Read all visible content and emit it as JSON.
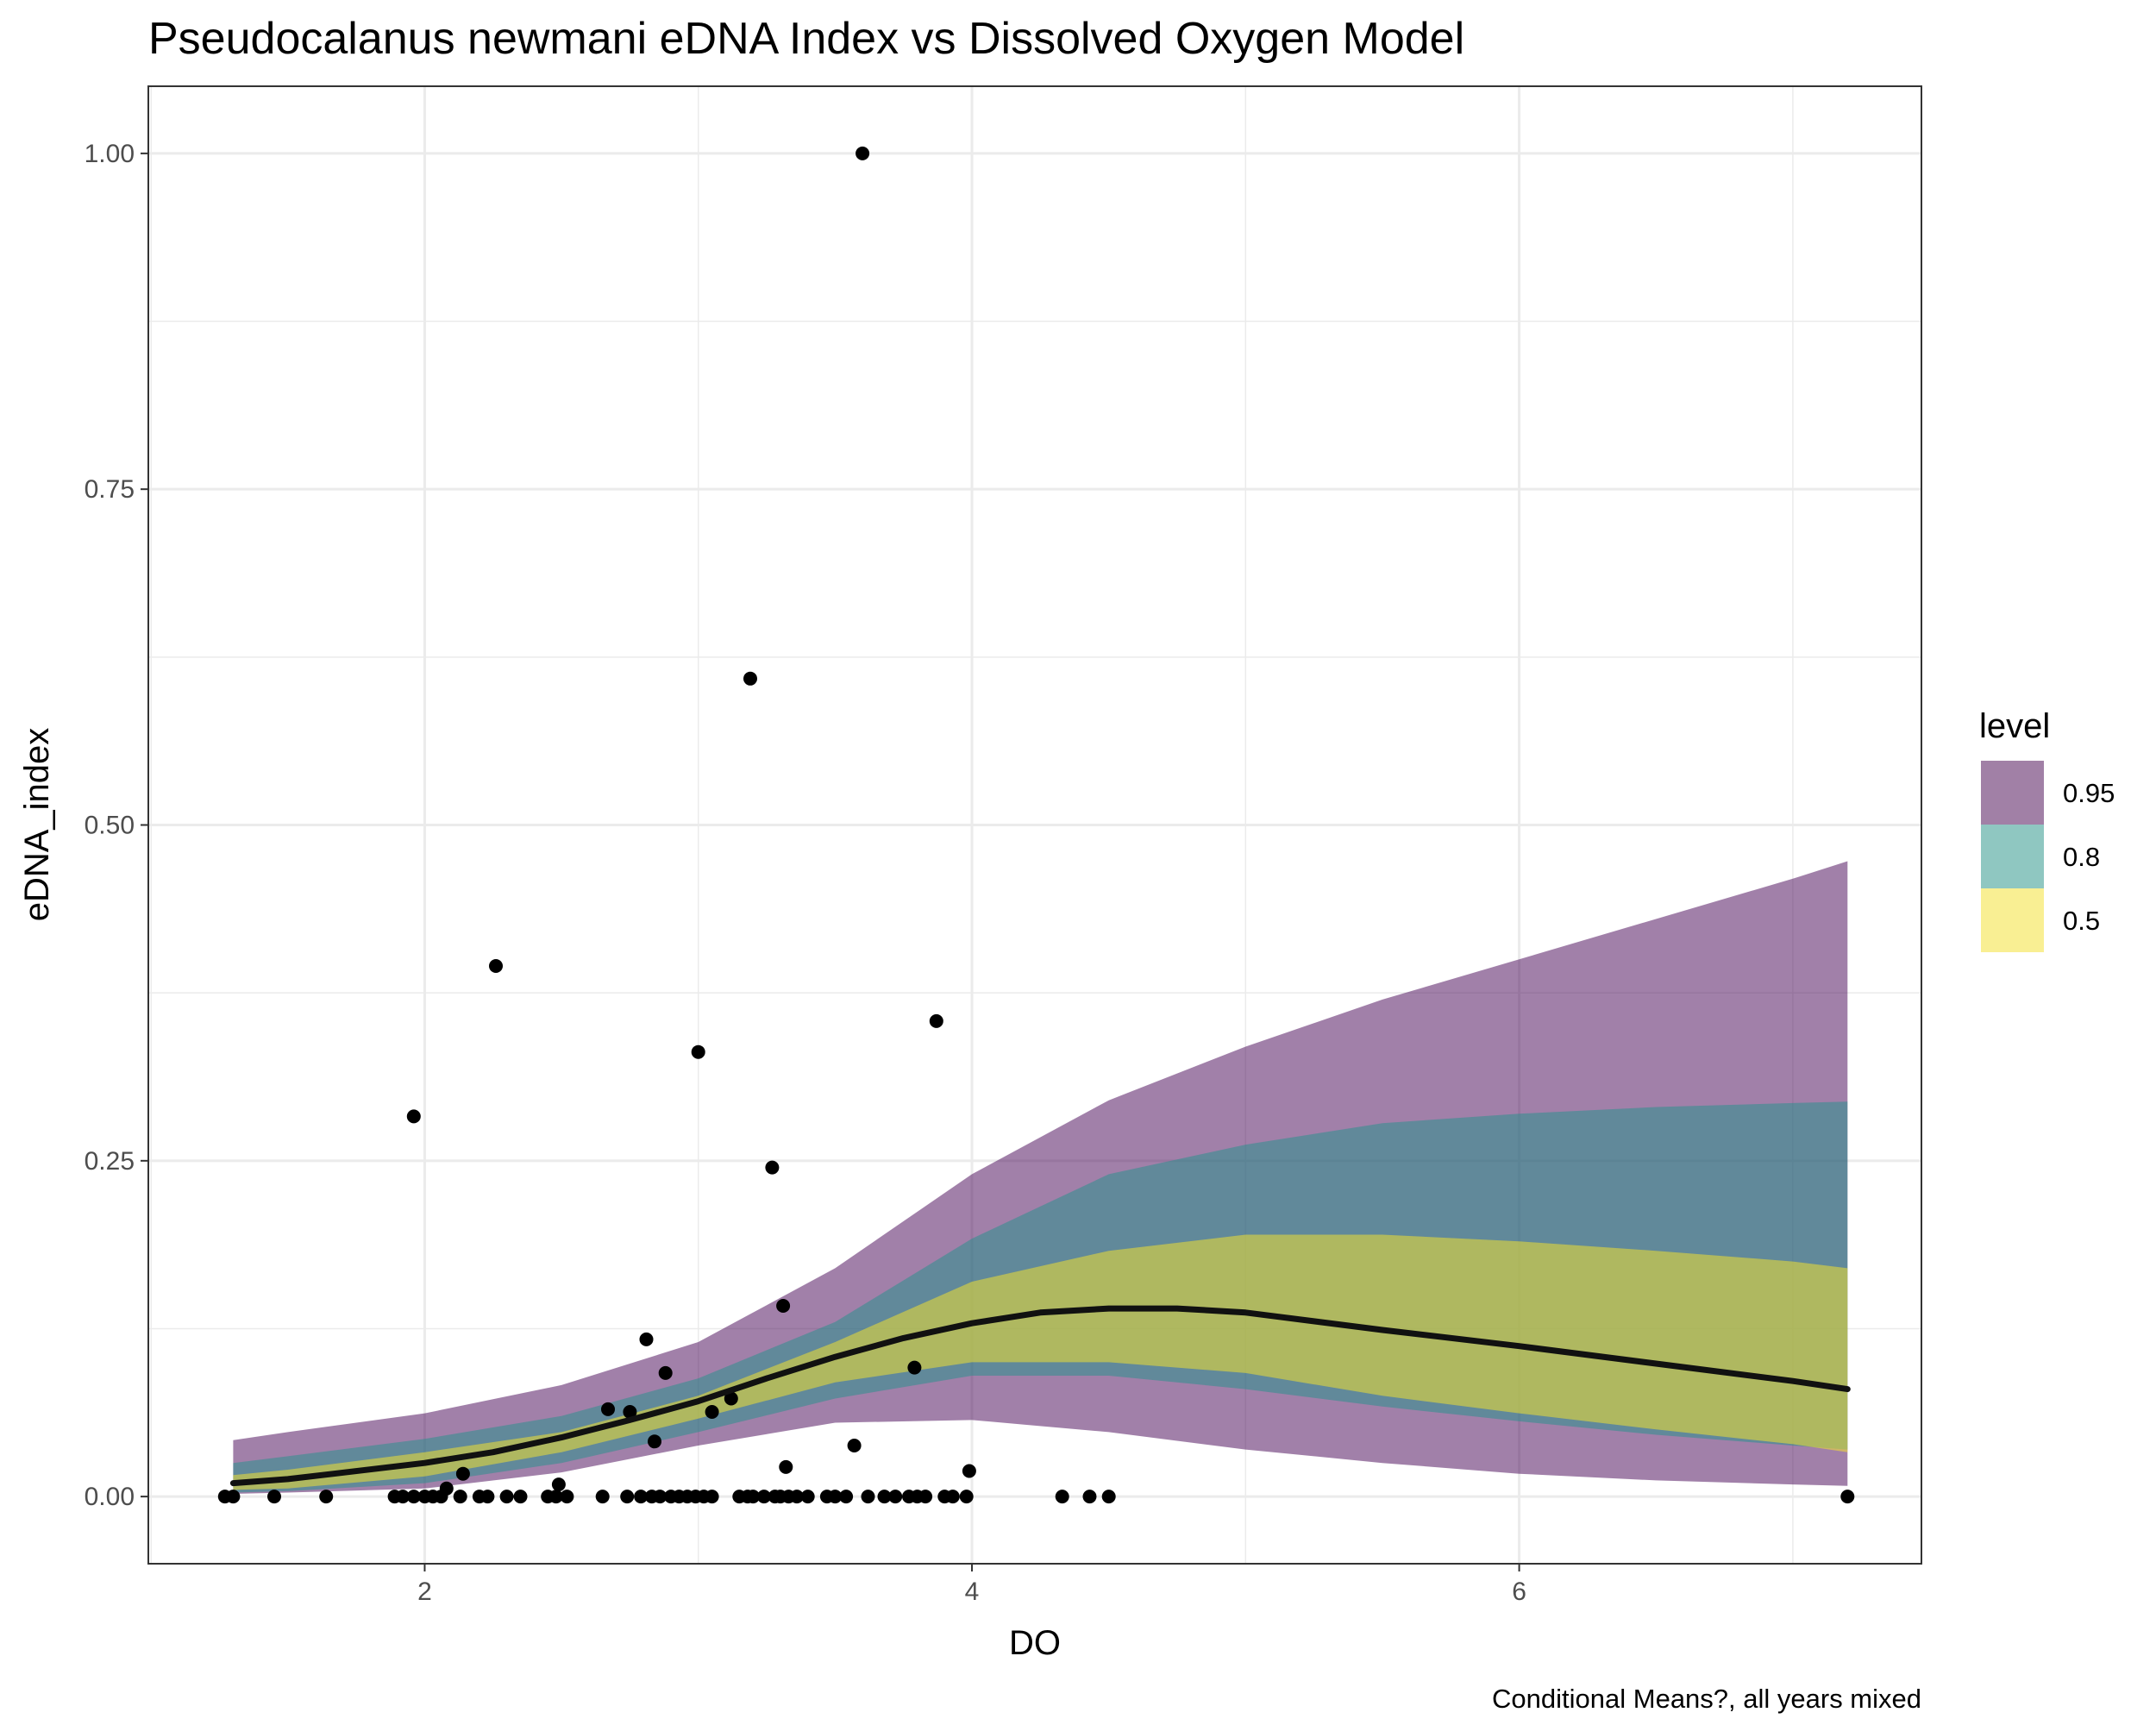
{
  "chart_data": {
    "type": "scatter",
    "title": "Pseudocalanus newmani eDNA Index vs Dissolved Oxygen Model",
    "xlabel": "DO",
    "ylabel": "eDNA_index",
    "caption": "Conditional Means?, all years mixed",
    "xlim": [
      0.99,
      7.47
    ],
    "ylim": [
      -0.05,
      1.05
    ],
    "x_ticks": [
      2,
      4,
      6
    ],
    "x_tick_labels": [
      "2",
      "4",
      "6"
    ],
    "y_ticks": [
      0,
      0.25,
      0.5,
      0.75,
      1.0
    ],
    "y_tick_labels": [
      "0.00",
      "0.25",
      "0.50",
      "0.75",
      "1.00"
    ],
    "grid": true,
    "legend": {
      "title": "level",
      "position": "right",
      "entries": [
        {
          "label": "0.95",
          "color": "#A180A6"
        },
        {
          "label": "0.8",
          "color": "#8FC7C1"
        },
        {
          "label": "0.5",
          "color": "#F9EF93"
        }
      ]
    },
    "bands": [
      {
        "level": "0.95",
        "color": "#440154",
        "opacity": 0.5,
        "x": [
          1.3,
          1.5,
          2.0,
          2.5,
          3.0,
          3.5,
          4.0,
          4.5,
          5.0,
          5.5,
          6.0,
          6.5,
          7.0,
          7.2
        ],
        "lower": [
          0.002,
          0.003,
          0.006,
          0.018,
          0.038,
          0.055,
          0.057,
          0.048,
          0.035,
          0.025,
          0.017,
          0.012,
          0.009,
          0.008
        ],
        "upper": [
          0.042,
          0.048,
          0.062,
          0.083,
          0.115,
          0.17,
          0.24,
          0.295,
          0.335,
          0.37,
          0.4,
          0.43,
          0.46,
          0.473
        ]
      },
      {
        "level": "0.8",
        "color": "#21918C",
        "opacity": 0.5,
        "x": [
          1.3,
          1.5,
          2.0,
          2.5,
          3.0,
          3.5,
          4.0,
          4.5,
          5.0,
          5.5,
          6.0,
          6.5,
          7.0,
          7.2
        ],
        "lower": [
          0.003,
          0.004,
          0.01,
          0.025,
          0.048,
          0.073,
          0.09,
          0.09,
          0.08,
          0.067,
          0.056,
          0.046,
          0.038,
          0.035
        ],
        "upper": [
          0.025,
          0.03,
          0.043,
          0.06,
          0.088,
          0.13,
          0.192,
          0.24,
          0.262,
          0.278,
          0.285,
          0.29,
          0.293,
          0.294
        ]
      },
      {
        "level": "0.5",
        "color": "#FDE725",
        "opacity": 0.5,
        "x": [
          1.3,
          1.5,
          2.0,
          2.5,
          3.0,
          3.5,
          4.0,
          4.5,
          5.0,
          5.5,
          6.0,
          6.5,
          7.0,
          7.2
        ],
        "lower": [
          0.005,
          0.006,
          0.015,
          0.033,
          0.058,
          0.085,
          0.1,
          0.1,
          0.092,
          0.075,
          0.062,
          0.05,
          0.039,
          0.033
        ],
        "upper": [
          0.016,
          0.02,
          0.033,
          0.048,
          0.075,
          0.115,
          0.16,
          0.183,
          0.195,
          0.195,
          0.19,
          0.183,
          0.175,
          0.17
        ]
      }
    ],
    "line": {
      "name": "mean",
      "color": "#111111",
      "x": [
        1.3,
        1.5,
        2.0,
        2.25,
        2.5,
        2.75,
        3.0,
        3.25,
        3.5,
        3.75,
        4.0,
        4.25,
        4.5,
        4.75,
        5.0,
        5.5,
        6.0,
        6.5,
        7.0,
        7.2
      ],
      "y": [
        0.01,
        0.013,
        0.025,
        0.033,
        0.044,
        0.057,
        0.071,
        0.088,
        0.104,
        0.118,
        0.129,
        0.137,
        0.14,
        0.14,
        0.137,
        0.124,
        0.112,
        0.099,
        0.086,
        0.08
      ]
    },
    "points": {
      "color": "#000000",
      "x": [
        1.27,
        1.3,
        1.45,
        1.64,
        1.89,
        1.92,
        1.96,
        2.0,
        2.03,
        2.06,
        2.13,
        2.2,
        2.23,
        2.3,
        2.35,
        2.45,
        2.48,
        2.52,
        2.65,
        2.74,
        2.79,
        2.83,
        2.86,
        2.9,
        2.93,
        2.96,
        2.99,
        3.02,
        3.05,
        3.15,
        3.18,
        3.2,
        3.24,
        3.28,
        3.3,
        3.33,
        3.36,
        3.4,
        3.47,
        3.5,
        3.54,
        3.62,
        3.68,
        3.72,
        3.77,
        3.8,
        3.83,
        3.9,
        3.93,
        3.98,
        4.33,
        4.43,
        4.5,
        7.2,
        1.96,
        2.26,
        2.67,
        2.81,
        2.84,
        2.88,
        3.0,
        3.05,
        3.12,
        3.19,
        3.27,
        3.31,
        3.32,
        3.57,
        3.6,
        3.79,
        3.87,
        3.99,
        2.49,
        2.08,
        2.14,
        2.75
      ],
      "y": [
        0,
        0,
        0,
        0,
        0,
        0,
        0,
        0,
        0,
        0,
        0,
        0,
        0,
        0,
        0,
        0,
        0,
        0,
        0,
        0,
        0,
        0,
        0,
        0,
        0,
        0,
        0,
        0,
        0,
        0,
        0,
        0,
        0,
        0,
        0,
        0,
        0,
        0,
        0,
        0,
        0,
        0,
        0,
        0,
        0,
        0,
        0,
        0,
        0,
        0,
        0,
        0,
        0,
        0,
        0.283,
        0.395,
        0.065,
        0.117,
        0.041,
        0.092,
        0.331,
        0.063,
        0.073,
        0.609,
        0.245,
        0.142,
        0.022,
        0.038,
        1.0,
        0.096,
        0.354,
        0.019,
        0.009,
        0.006,
        0.017,
        0.063
      ]
    }
  }
}
